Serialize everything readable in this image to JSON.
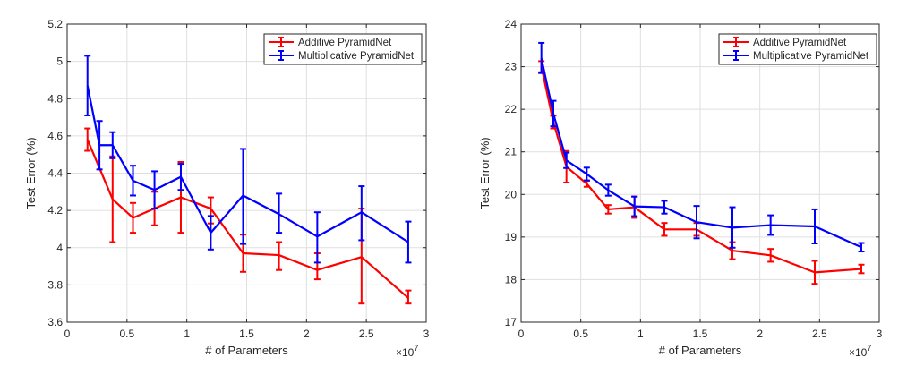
{
  "chart_data": [
    {
      "type": "line",
      "title": "",
      "xlabel": "# of Parameters",
      "ylabel": "Test Error (%)",
      "x_multiplier_label": "×10",
      "x_multiplier_exp": "7",
      "xlim": [
        0,
        3
      ],
      "ylim": [
        3.6,
        5.2
      ],
      "xticks": [
        0,
        0.5,
        1,
        1.5,
        2,
        2.5,
        3
      ],
      "xtick_labels": [
        "0",
        "0.5",
        "1",
        "1.5",
        "2",
        "2.5",
        "3"
      ],
      "yticks": [
        3.6,
        3.8,
        4,
        4.2,
        4.4,
        4.6,
        4.8,
        5,
        5.2
      ],
      "ytick_labels": [
        "3.6",
        "3.8",
        "4",
        "4.2",
        "4.4",
        "4.6",
        "4.8",
        "5",
        "5.2"
      ],
      "grid": true,
      "legend_position": "top-right",
      "series": [
        {
          "name": "Additive PyramidNet",
          "color": "#ff0000",
          "x": [
            0.17,
            0.38,
            0.55,
            0.73,
            0.95,
            1.2,
            1.47,
            1.77,
            2.09,
            2.46,
            2.85
          ],
          "y": [
            4.58,
            4.26,
            4.16,
            4.21,
            4.27,
            4.21,
            3.97,
            3.96,
            3.88,
            3.95,
            3.73
          ],
          "err_low": [
            4.52,
            4.03,
            4.08,
            4.12,
            4.08,
            4.13,
            3.87,
            3.88,
            3.83,
            3.7,
            3.7
          ],
          "err_high": [
            4.64,
            4.49,
            4.24,
            4.3,
            4.46,
            4.27,
            4.07,
            4.03,
            3.97,
            4.21,
            3.77
          ]
        },
        {
          "name": "Multiplicative PyramidNet",
          "color": "#0000ff",
          "x": [
            0.17,
            0.27,
            0.38,
            0.55,
            0.73,
            0.95,
            1.2,
            1.47,
            1.77,
            2.09,
            2.46,
            2.85
          ],
          "y": [
            4.87,
            4.55,
            4.55,
            4.36,
            4.31,
            4.38,
            4.08,
            4.28,
            4.18,
            4.06,
            4.19,
            4.03
          ],
          "err_low": [
            4.71,
            4.42,
            4.48,
            4.28,
            4.21,
            4.31,
            3.99,
            4.02,
            4.08,
            3.92,
            4.04,
            3.92
          ],
          "err_high": [
            5.03,
            4.68,
            4.62,
            4.44,
            4.41,
            4.45,
            4.17,
            4.53,
            4.29,
            4.19,
            4.33,
            4.14
          ]
        }
      ]
    },
    {
      "type": "line",
      "title": "",
      "xlabel": "# of Parameters",
      "ylabel": "Test Error (%)",
      "x_multiplier_label": "×10",
      "x_multiplier_exp": "7",
      "xlim": [
        0,
        3
      ],
      "ylim": [
        17,
        24
      ],
      "xticks": [
        0,
        0.5,
        1,
        1.5,
        2,
        2.5,
        3
      ],
      "xtick_labels": [
        "0",
        "0.5",
        "1",
        "1.5",
        "2",
        "2.5",
        "3"
      ],
      "yticks": [
        17,
        18,
        19,
        20,
        21,
        22,
        23,
        24
      ],
      "ytick_labels": [
        "17",
        "18",
        "19",
        "20",
        "21",
        "22",
        "23",
        "24"
      ],
      "grid": true,
      "legend_position": "top-right",
      "series": [
        {
          "name": "Additive PyramidNet",
          "color": "#ff0000",
          "x": [
            0.17,
            0.27,
            0.38,
            0.55,
            0.73,
            0.95,
            1.2,
            1.47,
            1.77,
            2.09,
            2.46,
            2.85
          ],
          "y": [
            23.0,
            21.7,
            20.65,
            20.25,
            19.65,
            19.7,
            19.18,
            19.18,
            18.68,
            18.57,
            18.17,
            18.25
          ],
          "err_low": [
            22.87,
            21.55,
            20.28,
            20.18,
            19.55,
            19.45,
            19.03,
            19.03,
            18.48,
            18.42,
            17.9,
            18.15
          ],
          "err_high": [
            23.13,
            21.85,
            21.02,
            20.32,
            19.75,
            19.95,
            19.33,
            19.33,
            18.88,
            18.72,
            18.44,
            18.35
          ]
        },
        {
          "name": "Multiplicative PyramidNet",
          "color": "#0000ff",
          "x": [
            0.17,
            0.27,
            0.38,
            0.55,
            0.73,
            0.95,
            1.2,
            1.47,
            1.77,
            2.09,
            2.46,
            2.85
          ],
          "y": [
            23.2,
            21.9,
            20.8,
            20.48,
            20.1,
            19.72,
            19.7,
            19.35,
            19.22,
            19.28,
            19.25,
            18.76
          ],
          "err_low": [
            22.85,
            21.6,
            20.62,
            20.33,
            19.97,
            19.49,
            19.55,
            18.97,
            18.75,
            19.05,
            18.85,
            18.66
          ],
          "err_high": [
            23.56,
            22.2,
            20.98,
            20.63,
            20.23,
            19.95,
            19.85,
            19.73,
            19.7,
            19.51,
            19.65,
            18.86
          ]
        }
      ]
    }
  ]
}
